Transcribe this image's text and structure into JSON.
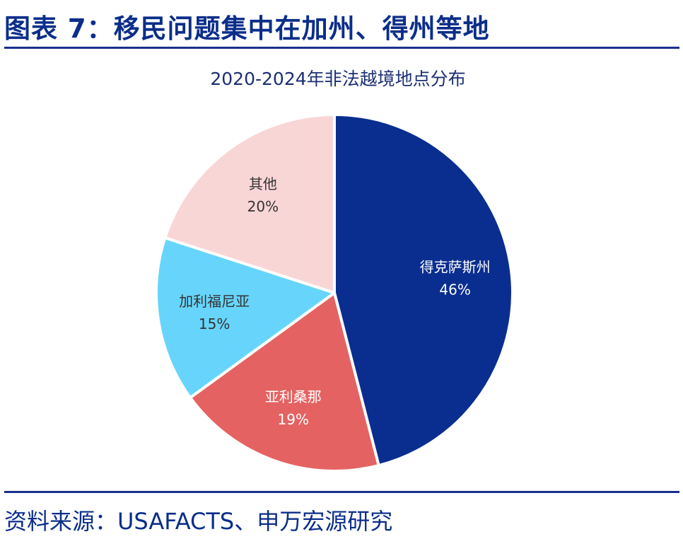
{
  "figure": {
    "title": "图表 7：移民问题集中在加州、得州等地",
    "source": "资料来源：USAFACTS、申万宏源研究"
  },
  "chart_data": {
    "type": "pie",
    "title": "2020-2024年非法越境地点分布",
    "slices": [
      {
        "label": "得克萨斯州",
        "value": 46,
        "value_label": "46%",
        "color": "#0a2e8f",
        "text_color": "#ffffff"
      },
      {
        "label": "亚利桑那",
        "value": 19,
        "value_label": "19%",
        "color": "#e56262",
        "text_color": "#ffffff"
      },
      {
        "label": "加利福尼亚",
        "value": 15,
        "value_label": "15%",
        "color": "#67d5fb",
        "text_color": "#333333"
      },
      {
        "label": "其他",
        "value": 20,
        "value_label": "20%",
        "color": "#f9d6d6",
        "text_color": "#333333"
      }
    ],
    "start_angle": "12 o'clock",
    "direction": "clockwise",
    "legend": "none"
  }
}
